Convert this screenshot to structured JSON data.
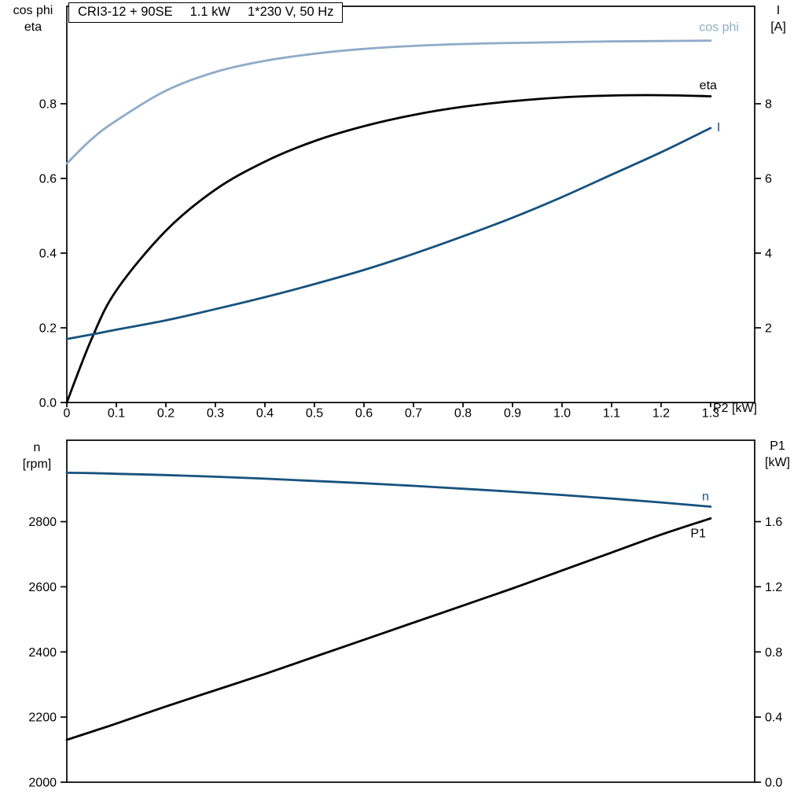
{
  "page": {
    "background": "#ffffff"
  },
  "header": {
    "model": "CRI3-12 + 90SE",
    "power": "1.1 kW",
    "supply": "1*230 V, 50 Hz"
  },
  "colors": {
    "cos_phi_curve": "#8fabc8",
    "eta_curve": "#000000",
    "current_curve": "#17527e",
    "speed_curve": "#17527e",
    "power_curve": "#000000",
    "axis": "#000000"
  },
  "top_chart": {
    "left_axis_title": [
      "cos phi",
      "eta"
    ],
    "right_axis_title": [
      "I",
      "[A]"
    ],
    "x_axis_title": "P2 [kW]"
  },
  "bottom_chart": {
    "left_axis_title": [
      "n",
      "[rpm]"
    ],
    "right_axis_title": [
      "P1",
      "[kW]"
    ]
  },
  "chart_data": [
    {
      "type": "line",
      "title": "CRI3-12 + 90SE   1.1 kW   1*230 V, 50 Hz",
      "xlabel": "P2 [kW]",
      "grid": false,
      "legend": "inline-end-labels",
      "xlim": [
        0,
        1.389
      ],
      "x_ticks": [
        0,
        0.1,
        0.2,
        0.3,
        0.4,
        0.5,
        0.6,
        0.7,
        0.8,
        0.9,
        1.0,
        1.1,
        1.2,
        1.3
      ],
      "x_tick_labels": [
        "0",
        "0.1",
        "0.2",
        "0.3",
        "0.4",
        "0.5",
        "0.6",
        "0.7",
        "0.8",
        "0.9",
        "1.0",
        "1.1",
        "1.2",
        "1.3"
      ],
      "left_axis": {
        "title": "cos phi / eta",
        "lim": [
          0,
          1.061
        ],
        "ticks": [
          0,
          0.2,
          0.4,
          0.6,
          0.8
        ],
        "tick_labels": [
          "0.0",
          "0.2",
          "0.4",
          "0.6",
          "0.8"
        ]
      },
      "right_axis": {
        "title": "I [A]",
        "lim": [
          0,
          10.61
        ],
        "ticks": [
          2,
          4,
          6,
          8
        ],
        "tick_labels": [
          "2",
          "4",
          "6",
          "8"
        ]
      },
      "x": [
        0,
        0.05,
        0.1,
        0.2,
        0.3,
        0.4,
        0.5,
        0.6,
        0.7,
        0.8,
        0.9,
        1.0,
        1.1,
        1.2,
        1.3
      ],
      "series": [
        {
          "name": "cos phi",
          "axis": "left",
          "color": "#8fabc8",
          "values": [
            0.64,
            0.705,
            0.755,
            0.835,
            0.885,
            0.915,
            0.934,
            0.947,
            0.955,
            0.96,
            0.963,
            0.965,
            0.967,
            0.968,
            0.969
          ],
          "label": {
            "dx": 36,
            "dy": -12,
            "anchor": "end"
          }
        },
        {
          "name": "eta",
          "axis": "left",
          "color": "#000000",
          "values": [
            0,
            0.17,
            0.3,
            0.46,
            0.57,
            0.645,
            0.7,
            0.74,
            0.77,
            0.792,
            0.807,
            0.817,
            0.822,
            0.823,
            0.82
          ],
          "label": {
            "dx": 8,
            "dy": -9,
            "anchor": "end"
          }
        },
        {
          "name": "I",
          "axis": "right",
          "color": "#17527e",
          "values": [
            1.7,
            1.82,
            1.95,
            2.2,
            2.5,
            2.82,
            3.17,
            3.55,
            3.98,
            4.45,
            4.95,
            5.5,
            6.1,
            6.7,
            7.35
          ],
          "label": {
            "dx": 8,
            "dy": 4,
            "anchor": "start"
          }
        }
      ]
    },
    {
      "type": "line",
      "title": "",
      "xlabel": "",
      "grid": false,
      "legend": "inline-end-labels",
      "xlim": [
        0,
        1.389
      ],
      "x_ticks": [],
      "x_tick_labels": [],
      "left_axis": {
        "title": "n [rpm]",
        "lim": [
          2000,
          3050
        ],
        "ticks": [
          2000,
          2200,
          2400,
          2600,
          2800
        ],
        "tick_labels": [
          "2000",
          "2200",
          "2400",
          "2600",
          "2800"
        ]
      },
      "right_axis": {
        "title": "P1 [kW]",
        "lim": [
          0,
          2.1
        ],
        "ticks": [
          0,
          0.4,
          0.8,
          1.2,
          1.6
        ],
        "tick_labels": [
          "0.0",
          "0.4",
          "0.8",
          "1.2",
          "1.6"
        ]
      },
      "x": [
        0,
        0.05,
        0.1,
        0.2,
        0.3,
        0.4,
        0.5,
        0.6,
        0.7,
        0.8,
        0.9,
        1.0,
        1.1,
        1.2,
        1.3
      ],
      "series": [
        {
          "name": "n",
          "axis": "left",
          "color": "#17527e",
          "values": [
            2950,
            2949,
            2947,
            2943,
            2938,
            2932,
            2925,
            2918,
            2910,
            2901,
            2892,
            2882,
            2871,
            2859,
            2846
          ],
          "label": {
            "dx": -2,
            "dy": -8,
            "anchor": "end"
          }
        },
        {
          "name": "P1",
          "axis": "right",
          "color": "#000000",
          "values": [
            0.26,
            0.31,
            0.36,
            0.465,
            0.565,
            0.665,
            0.77,
            0.875,
            0.98,
            1.085,
            1.19,
            1.3,
            1.41,
            1.52,
            1.62
          ],
          "label": {
            "dx": -6,
            "dy": 24,
            "anchor": "end"
          }
        }
      ]
    }
  ]
}
